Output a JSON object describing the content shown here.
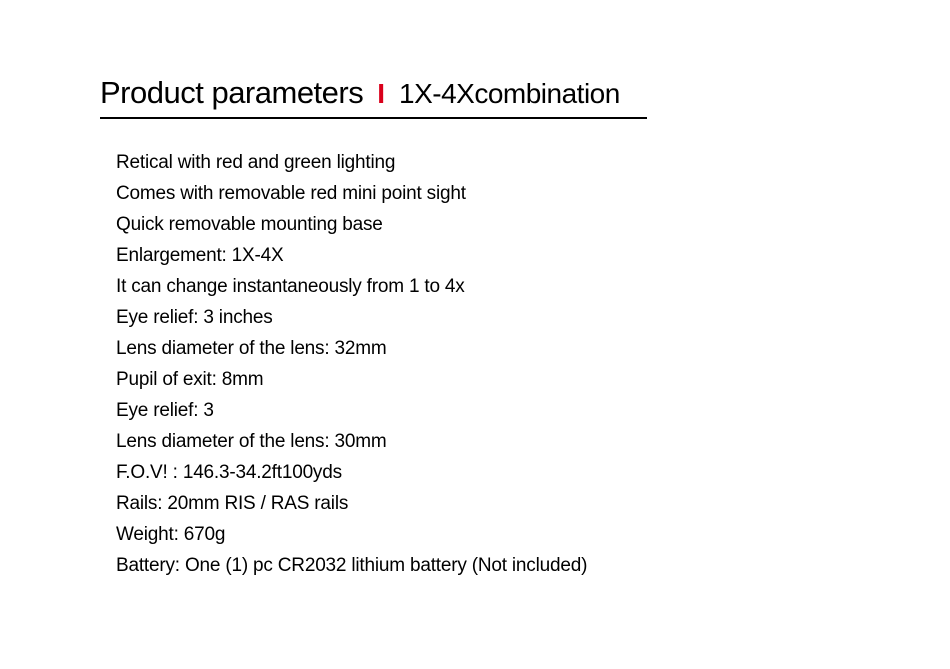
{
  "heading": {
    "main": "Product parameters",
    "separator": "I",
    "sub": "1X-4Xcombination"
  },
  "specs": [
    "Retical with red and green lighting",
    "Comes with removable red mini point sight",
    "Quick removable mounting base",
    "Enlargement: 1X-4X",
    "It can change instantaneously from 1 to 4x",
    "Eye relief: 3 inches",
    "Lens diameter of the lens: 32mm",
    "Pupil of exit: 8mm",
    "Eye relief: 3",
    "Lens diameter of the lens: 30mm",
    "F.O.V! : 146.3-34.2ft100yds",
    "Rails: 20mm RIS / RAS rails",
    "Weight: 670g",
    "Battery: One (1) pc CR2032 lithium battery (Not included)"
  ],
  "colors": {
    "accent": "#d9001b",
    "text": "#000000",
    "background": "#ffffff",
    "rule": "#000000"
  }
}
